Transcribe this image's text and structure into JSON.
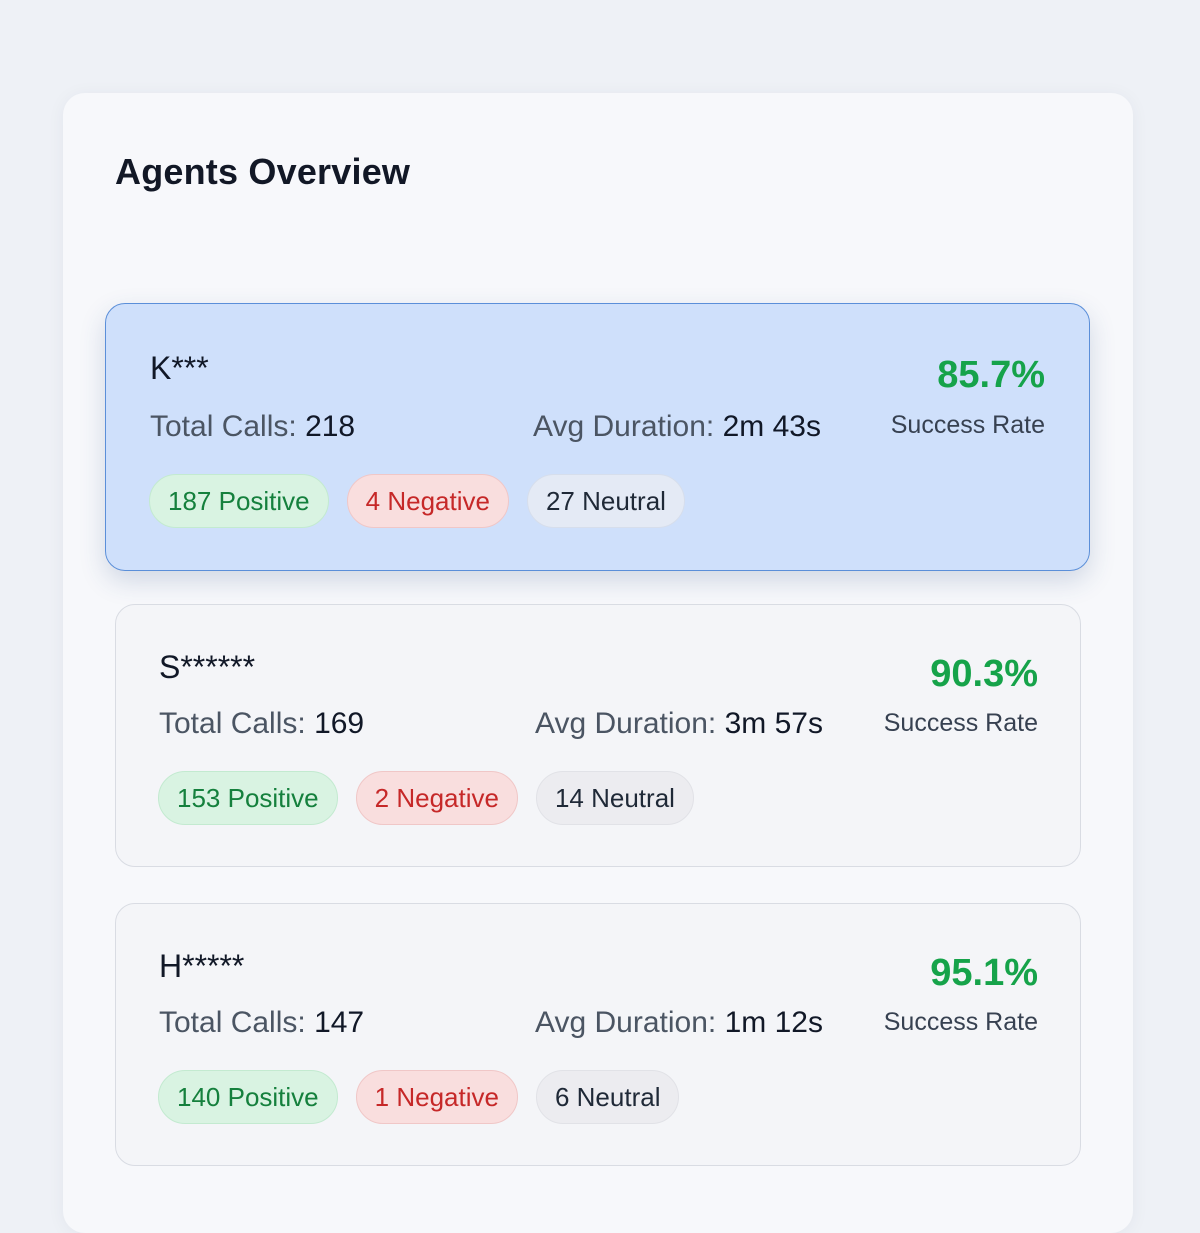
{
  "overview": {
    "title": "Agents Overview"
  },
  "labels": {
    "total_calls": "Total Calls:",
    "avg_duration": "Avg Duration:",
    "success_rate": "Success Rate"
  },
  "colors": {
    "success": "#16a34a",
    "positive": "#15803d",
    "negative": "#c62828",
    "selected_card": "#cfe0fb"
  },
  "agents": [
    {
      "name": "K***",
      "total_calls": "218",
      "avg_duration": "2m 43s",
      "success_rate": "85.7%",
      "positive": "187 Positive",
      "negative": "4 Negative",
      "neutral": "27 Neutral",
      "selected": true
    },
    {
      "name": "S******",
      "total_calls": "169",
      "avg_duration": "3m 57s",
      "success_rate": "90.3%",
      "positive": "153 Positive",
      "negative": "2 Negative",
      "neutral": "14 Neutral",
      "selected": false
    },
    {
      "name": "H*****",
      "total_calls": "147",
      "avg_duration": "1m 12s",
      "success_rate": "95.1%",
      "positive": "140 Positive",
      "negative": "1 Negative",
      "neutral": "6 Neutral",
      "selected": false
    }
  ]
}
